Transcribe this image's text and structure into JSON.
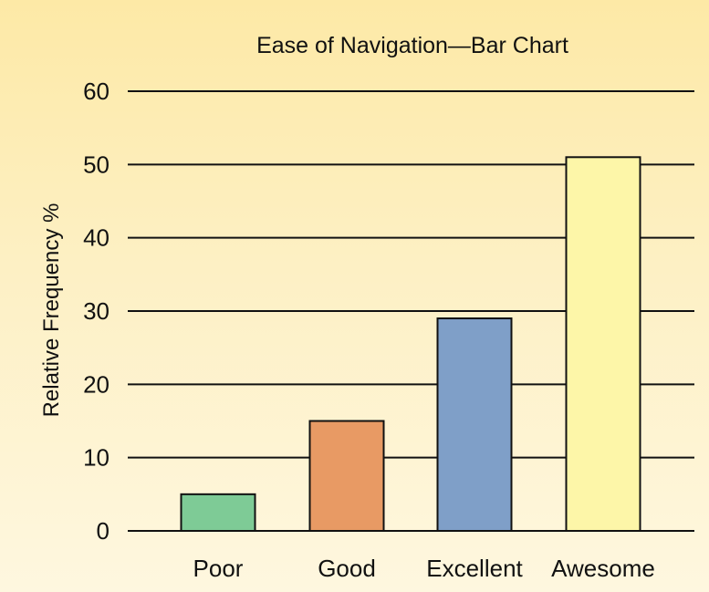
{
  "chart_data": {
    "type": "bar",
    "title": "Ease of Navigation—Bar Chart",
    "xlabel": "",
    "ylabel": "Relative Frequency %",
    "categories": [
      "Poor",
      "Good",
      "Excellent",
      "Awesome"
    ],
    "values": [
      5,
      15,
      29,
      51
    ],
    "ylim": [
      0,
      60
    ],
    "yticks": [
      0,
      10,
      20,
      30,
      40,
      50,
      60
    ],
    "grid": true,
    "colors": [
      "#7ecb96",
      "#e89a64",
      "#7f9fc8",
      "#fdf6a8"
    ]
  }
}
